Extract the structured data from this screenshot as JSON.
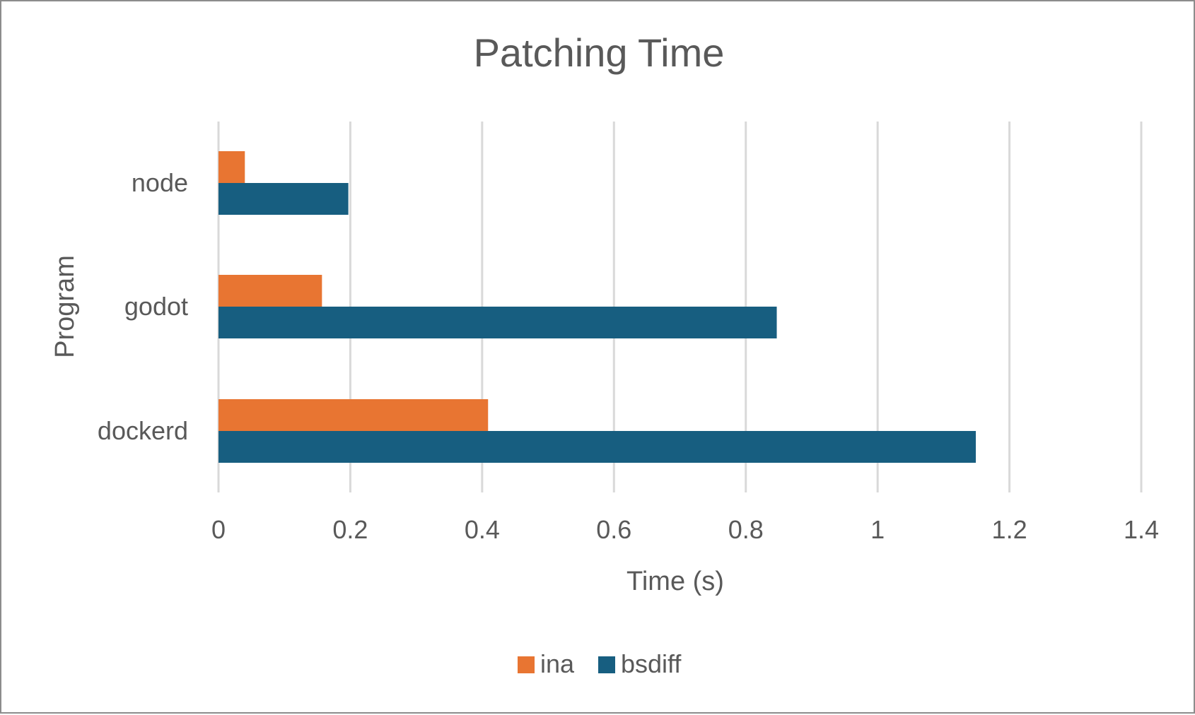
{
  "chart_data": {
    "type": "bar",
    "orientation": "horizontal",
    "title": "Patching Time",
    "xlabel": "Time (s)",
    "ylabel": "Program",
    "categories": [
      "node",
      "godot",
      "dockerd"
    ],
    "series": [
      {
        "name": "ina",
        "color": "#e87532",
        "values": [
          0.04,
          0.157,
          0.409
        ]
      },
      {
        "name": "bsdiff",
        "color": "#175e80",
        "values": [
          0.197,
          0.847,
          1.149
        ]
      }
    ],
    "xlim": [
      0,
      1.4
    ],
    "xticks": [
      "0",
      "0.2",
      "0.4",
      "0.6",
      "0.8",
      "1",
      "1.2",
      "1.4"
    ],
    "grid": "vertical",
    "legend_position": "bottom"
  }
}
